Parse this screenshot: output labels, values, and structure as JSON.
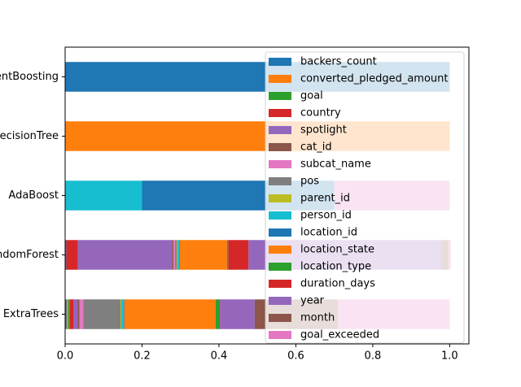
{
  "chart_data": {
    "type": "barh_stacked",
    "categories": [
      "ExtraTrees",
      "RandomForest",
      "AdaBoost",
      "DecisionTree",
      "GradientBoosting"
    ],
    "xlim": [
      0,
      1.05
    ],
    "xticks": [
      {
        "value": 0,
        "label": "0.0"
      },
      {
        "value": 0.2,
        "label": "0.2"
      },
      {
        "value": 0.4,
        "label": "0.4"
      },
      {
        "value": 0.6,
        "label": "0.6"
      },
      {
        "value": 0.8,
        "label": "0.8"
      },
      {
        "value": 1,
        "label": "1.0"
      }
    ],
    "legend": "upper right",
    "series": [
      {
        "name": "backers_count",
        "color": "#1f77b4",
        "values": [
          0.004,
          0.003,
          0,
          0,
          1.0
        ]
      },
      {
        "name": "converted_pledged_amount",
        "color": "#ff7f0e",
        "values": [
          0.004,
          0,
          0,
          1.0,
          0
        ]
      },
      {
        "name": "goal",
        "color": "#2ca02c",
        "values": [
          0.004,
          0,
          0,
          0,
          0
        ]
      },
      {
        "name": "country",
        "color": "#d62728",
        "values": [
          0.01,
          0.03,
          0,
          0,
          0
        ]
      },
      {
        "name": "spotlight",
        "color": "#9467bd",
        "values": [
          0.01,
          0.245,
          0,
          0,
          0
        ]
      },
      {
        "name": "cat_id",
        "color": "#8c564b",
        "values": [
          0.005,
          0.004,
          0,
          0,
          0
        ]
      },
      {
        "name": "subcat_name",
        "color": "#e377c2",
        "values": [
          0.01,
          0.004,
          0,
          0,
          0
        ]
      },
      {
        "name": "pos",
        "color": "#7f7f7f",
        "values": [
          0.097,
          0.004,
          0,
          0,
          0
        ]
      },
      {
        "name": "parent_id",
        "color": "#bcbd22",
        "values": [
          0.002,
          0.002,
          0,
          0,
          0
        ]
      },
      {
        "name": "person_id",
        "color": "#17becf",
        "values": [
          0.006,
          0.004,
          0.2,
          0,
          0
        ]
      },
      {
        "name": "location_id",
        "color": "#1f77b4",
        "values": [
          0.002,
          0.002,
          0.5,
          0,
          0
        ]
      },
      {
        "name": "location_state",
        "color": "#ff7f0e",
        "values": [
          0.237,
          0.123,
          0,
          0,
          0
        ]
      },
      {
        "name": "location_type",
        "color": "#2ca02c",
        "values": [
          0.01,
          0.003,
          0,
          0,
          0
        ]
      },
      {
        "name": "duration_days",
        "color": "#d62728",
        "values": [
          0.002,
          0.053,
          0,
          0,
          0
        ]
      },
      {
        "name": "year",
        "color": "#9467bd",
        "values": [
          0.09,
          0.5,
          0,
          0,
          0
        ]
      },
      {
        "name": "month",
        "color": "#8c564b",
        "values": [
          0.217,
          0.02,
          0,
          0,
          0
        ]
      },
      {
        "name": "goal_exceeded",
        "color": "#e377c2",
        "values": [
          0.29,
          0.006,
          0.3,
          0,
          0
        ]
      }
    ]
  }
}
